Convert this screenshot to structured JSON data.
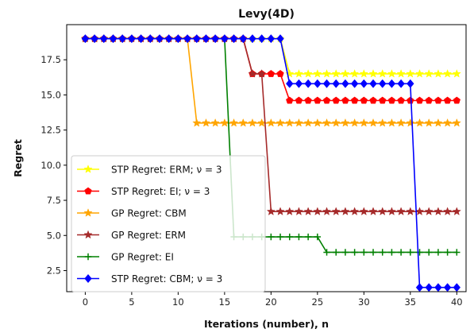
{
  "chart_data": {
    "type": "line",
    "title": "Levy(4D)",
    "xlabel": "Iterations (number), n",
    "ylabel": "Regret",
    "xlim": [
      -2,
      41
    ],
    "ylim": [
      1.0,
      20.0
    ],
    "xticks": [
      0,
      5,
      10,
      15,
      20,
      25,
      30,
      35,
      40
    ],
    "xtick_labels": [
      "0",
      "5",
      "10",
      "15",
      "20",
      "25",
      "30",
      "35",
      "40"
    ],
    "yticks": [
      2.5,
      5.0,
      7.5,
      10.0,
      12.5,
      15.0,
      17.5
    ],
    "ytick_labels": [
      "2.5",
      "5.0",
      "7.5",
      "10.0",
      "12.5",
      "15.0",
      "17.5"
    ],
    "grid": false,
    "legend_position": "lower-left",
    "x": [
      0,
      1,
      2,
      3,
      4,
      5,
      6,
      7,
      8,
      9,
      10,
      11,
      12,
      13,
      14,
      15,
      16,
      17,
      18,
      19,
      20,
      21,
      22,
      23,
      24,
      25,
      26,
      27,
      28,
      29,
      30,
      31,
      32,
      33,
      34,
      35,
      36,
      37,
      38,
      39,
      40
    ],
    "series": [
      {
        "name": "STP Regret: ERM; ν = 3",
        "color": "#ffff00",
        "marker": "star",
        "values": [
          19,
          19,
          19,
          19,
          19,
          19,
          19,
          19,
          19,
          19,
          19,
          19,
          19,
          19,
          19,
          19,
          19,
          19,
          19,
          19,
          19,
          19,
          16.5,
          16.5,
          16.5,
          16.5,
          16.5,
          16.5,
          16.5,
          16.5,
          16.5,
          16.5,
          16.5,
          16.5,
          16.5,
          16.5,
          16.5,
          16.5,
          16.5,
          16.5,
          16.5
        ]
      },
      {
        "name": "STP Regret: EI; ν = 3",
        "color": "#ff0000",
        "marker": "pentagon",
        "values": [
          19,
          19,
          19,
          19,
          19,
          19,
          19,
          19,
          19,
          19,
          19,
          19,
          19,
          19,
          19,
          19,
          19,
          19,
          16.5,
          16.5,
          16.5,
          16.5,
          14.6,
          14.6,
          14.6,
          14.6,
          14.6,
          14.6,
          14.6,
          14.6,
          14.6,
          14.6,
          14.6,
          14.6,
          14.6,
          14.6,
          14.6,
          14.6,
          14.6,
          14.6,
          14.6
        ]
      },
      {
        "name": "GP Regret: CBM",
        "color": "#ffa500",
        "marker": "star",
        "values": [
          19,
          19,
          19,
          19,
          19,
          19,
          19,
          19,
          19,
          19,
          19,
          19,
          13,
          13,
          13,
          13,
          13,
          13,
          13,
          13,
          13,
          13,
          13,
          13,
          13,
          13,
          13,
          13,
          13,
          13,
          13,
          13,
          13,
          13,
          13,
          13,
          13,
          13,
          13,
          13,
          13
        ]
      },
      {
        "name": "GP Regret: ERM",
        "color": "#a52a2a",
        "marker": "star",
        "values": [
          19,
          19,
          19,
          19,
          19,
          19,
          19,
          19,
          19,
          19,
          19,
          19,
          19,
          19,
          19,
          19,
          19,
          19,
          16.5,
          16.5,
          6.7,
          6.7,
          6.7,
          6.7,
          6.7,
          6.7,
          6.7,
          6.7,
          6.7,
          6.7,
          6.7,
          6.7,
          6.7,
          6.7,
          6.7,
          6.7,
          6.7,
          6.7,
          6.7,
          6.7,
          6.7
        ]
      },
      {
        "name": "GP Regret: EI",
        "color": "#008000",
        "marker": "plus",
        "values": [
          19,
          19,
          19,
          19,
          19,
          19,
          19,
          19,
          19,
          19,
          19,
          19,
          19,
          19,
          19,
          19,
          4.9,
          4.9,
          4.9,
          4.9,
          4.9,
          4.9,
          4.9,
          4.9,
          4.9,
          4.9,
          3.8,
          3.8,
          3.8,
          3.8,
          3.8,
          3.8,
          3.8,
          3.8,
          3.8,
          3.8,
          3.8,
          3.8,
          3.8,
          3.8,
          3.8
        ]
      },
      {
        "name": "STP Regret: CBM; ν = 3",
        "color": "#0000ff",
        "marker": "diamond",
        "values": [
          19,
          19,
          19,
          19,
          19,
          19,
          19,
          19,
          19,
          19,
          19,
          19,
          19,
          19,
          19,
          19,
          19,
          19,
          19,
          19,
          19,
          19,
          15.8,
          15.8,
          15.8,
          15.8,
          15.8,
          15.8,
          15.8,
          15.8,
          15.8,
          15.8,
          15.8,
          15.8,
          15.8,
          15.8,
          1.3,
          1.3,
          1.3,
          1.3,
          1.3
        ]
      }
    ]
  }
}
